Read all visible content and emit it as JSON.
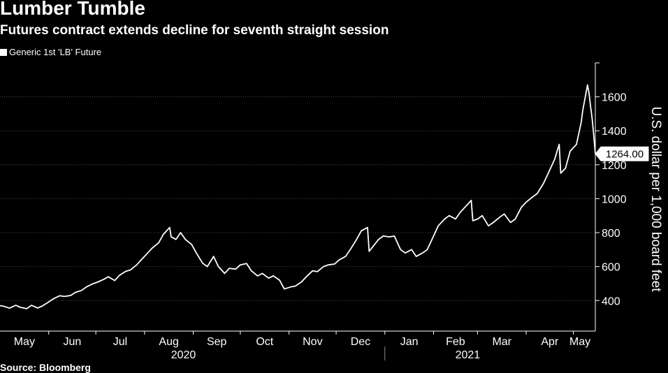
{
  "header": {
    "title": "Lumber Tumble",
    "subtitle": "Futures contract extends decline for seventh straight session",
    "source": "Source: Bloomberg"
  },
  "legend": {
    "label": "Generic 1st 'LB' Future"
  },
  "colors": {
    "background": "#000000",
    "line": "#ffffff",
    "grid": "#4a4a4a"
  },
  "chart_data": {
    "type": "line",
    "title": "Lumber Tumble",
    "subtitle": "Futures contract extends decline for seventh straight session",
    "ylabel": "U.S. dollar per 1,000 board feet",
    "xlabel": "",
    "ylim": [
      220,
      1800
    ],
    "yticks": [
      400,
      600,
      800,
      1000,
      1200,
      1400,
      1600
    ],
    "grid": "horizontal dotted",
    "legend_position": "top-left",
    "last_value_label": "1264.00",
    "x_axis": {
      "start": "2020-05-01",
      "end": "2021-05-15",
      "month_labels": [
        {
          "label": "May",
          "date": "2020-05-01"
        },
        {
          "label": "Jun",
          "date": "2020-06-01"
        },
        {
          "label": "Jul",
          "date": "2020-07-01"
        },
        {
          "label": "Aug",
          "date": "2020-08-01"
        },
        {
          "label": "Sep",
          "date": "2020-09-01"
        },
        {
          "label": "Oct",
          "date": "2020-10-01"
        },
        {
          "label": "Nov",
          "date": "2020-11-01"
        },
        {
          "label": "Dec",
          "date": "2020-12-01"
        },
        {
          "label": "Jan",
          "date": "2021-01-01"
        },
        {
          "label": "Feb",
          "date": "2021-02-01"
        },
        {
          "label": "Mar",
          "date": "2021-03-01"
        },
        {
          "label": "Apr",
          "date": "2021-04-01"
        },
        {
          "label": "May",
          "date": "2021-05-01"
        }
      ],
      "year_labels": [
        {
          "label": "2020",
          "date": "2020-09-01"
        },
        {
          "label": "2021",
          "date": "2021-03-01"
        }
      ],
      "year_separator": "2021-01-01"
    },
    "series": [
      {
        "name": "Generic 1st 'LB' Future",
        "points": [
          [
            "2020-05-01",
            370
          ],
          [
            "2020-05-04",
            365
          ],
          [
            "2020-05-07",
            355
          ],
          [
            "2020-05-11",
            372
          ],
          [
            "2020-05-14",
            360
          ],
          [
            "2020-05-18",
            352
          ],
          [
            "2020-05-21",
            372
          ],
          [
            "2020-05-25",
            356
          ],
          [
            "2020-05-28",
            368
          ],
          [
            "2020-06-01",
            392
          ],
          [
            "2020-06-04",
            410
          ],
          [
            "2020-06-08",
            428
          ],
          [
            "2020-06-11",
            424
          ],
          [
            "2020-06-15",
            430
          ],
          [
            "2020-06-18",
            448
          ],
          [
            "2020-06-22",
            460
          ],
          [
            "2020-06-25",
            480
          ],
          [
            "2020-06-29",
            498
          ],
          [
            "2020-07-02",
            508
          ],
          [
            "2020-07-06",
            525
          ],
          [
            "2020-07-09",
            540
          ],
          [
            "2020-07-13",
            518
          ],
          [
            "2020-07-16",
            548
          ],
          [
            "2020-07-20",
            572
          ],
          [
            "2020-07-23",
            580
          ],
          [
            "2020-07-27",
            610
          ],
          [
            "2020-07-30",
            640
          ],
          [
            "2020-08-03",
            680
          ],
          [
            "2020-08-06",
            710
          ],
          [
            "2020-08-10",
            740
          ],
          [
            "2020-08-13",
            790
          ],
          [
            "2020-08-17",
            830
          ],
          [
            "2020-08-18",
            775
          ],
          [
            "2020-08-21",
            760
          ],
          [
            "2020-08-24",
            800
          ],
          [
            "2020-08-27",
            760
          ],
          [
            "2020-08-31",
            730
          ],
          [
            "2020-09-03",
            680
          ],
          [
            "2020-09-07",
            620
          ],
          [
            "2020-09-10",
            600
          ],
          [
            "2020-09-14",
            660
          ],
          [
            "2020-09-17",
            600
          ],
          [
            "2020-09-21",
            560
          ],
          [
            "2020-09-24",
            590
          ],
          [
            "2020-09-28",
            585
          ],
          [
            "2020-10-01",
            610
          ],
          [
            "2020-10-05",
            618
          ],
          [
            "2020-10-08",
            575
          ],
          [
            "2020-10-12",
            545
          ],
          [
            "2020-10-15",
            560
          ],
          [
            "2020-10-19",
            532
          ],
          [
            "2020-10-22",
            545
          ],
          [
            "2020-10-26",
            520
          ],
          [
            "2020-10-29",
            468
          ],
          [
            "2020-11-02",
            480
          ],
          [
            "2020-11-05",
            485
          ],
          [
            "2020-11-09",
            510
          ],
          [
            "2020-11-12",
            540
          ],
          [
            "2020-11-16",
            575
          ],
          [
            "2020-11-19",
            570
          ],
          [
            "2020-11-23",
            600
          ],
          [
            "2020-11-26",
            610
          ],
          [
            "2020-11-30",
            615
          ],
          [
            "2020-12-03",
            640
          ],
          [
            "2020-12-07",
            660
          ],
          [
            "2020-12-10",
            700
          ],
          [
            "2020-12-14",
            760
          ],
          [
            "2020-12-17",
            810
          ],
          [
            "2020-12-21",
            830
          ],
          [
            "2020-12-22",
            690
          ],
          [
            "2020-12-28",
            760
          ],
          [
            "2020-12-31",
            780
          ],
          [
            "2021-01-04",
            775
          ],
          [
            "2021-01-07",
            780
          ],
          [
            "2021-01-11",
            700
          ],
          [
            "2021-01-14",
            680
          ],
          [
            "2021-01-18",
            700
          ],
          [
            "2021-01-21",
            660
          ],
          [
            "2021-01-25",
            680
          ],
          [
            "2021-01-28",
            700
          ],
          [
            "2021-02-01",
            780
          ],
          [
            "2021-02-04",
            840
          ],
          [
            "2021-02-08",
            880
          ],
          [
            "2021-02-11",
            900
          ],
          [
            "2021-02-15",
            880
          ],
          [
            "2021-02-18",
            920
          ],
          [
            "2021-02-22",
            960
          ],
          [
            "2021-02-25",
            990
          ],
          [
            "2021-02-26",
            870
          ],
          [
            "2021-03-01",
            880
          ],
          [
            "2021-03-04",
            900
          ],
          [
            "2021-03-08",
            840
          ],
          [
            "2021-03-11",
            860
          ],
          [
            "2021-03-15",
            890
          ],
          [
            "2021-03-18",
            910
          ],
          [
            "2021-03-22",
            860
          ],
          [
            "2021-03-25",
            880
          ],
          [
            "2021-03-29",
            950
          ],
          [
            "2021-04-01",
            980
          ],
          [
            "2021-04-05",
            1010
          ],
          [
            "2021-04-08",
            1030
          ],
          [
            "2021-04-12",
            1090
          ],
          [
            "2021-04-15",
            1150
          ],
          [
            "2021-04-19",
            1230
          ],
          [
            "2021-04-22",
            1320
          ],
          [
            "2021-04-23",
            1150
          ],
          [
            "2021-04-26",
            1180
          ],
          [
            "2021-04-29",
            1280
          ],
          [
            "2021-05-03",
            1320
          ],
          [
            "2021-05-06",
            1450
          ],
          [
            "2021-05-07",
            1520
          ],
          [
            "2021-05-10",
            1670
          ],
          [
            "2021-05-11",
            1620
          ],
          [
            "2021-05-12",
            1540
          ],
          [
            "2021-05-13",
            1470
          ],
          [
            "2021-05-14",
            1370
          ],
          [
            "2021-05-15",
            1264
          ]
        ]
      }
    ]
  }
}
